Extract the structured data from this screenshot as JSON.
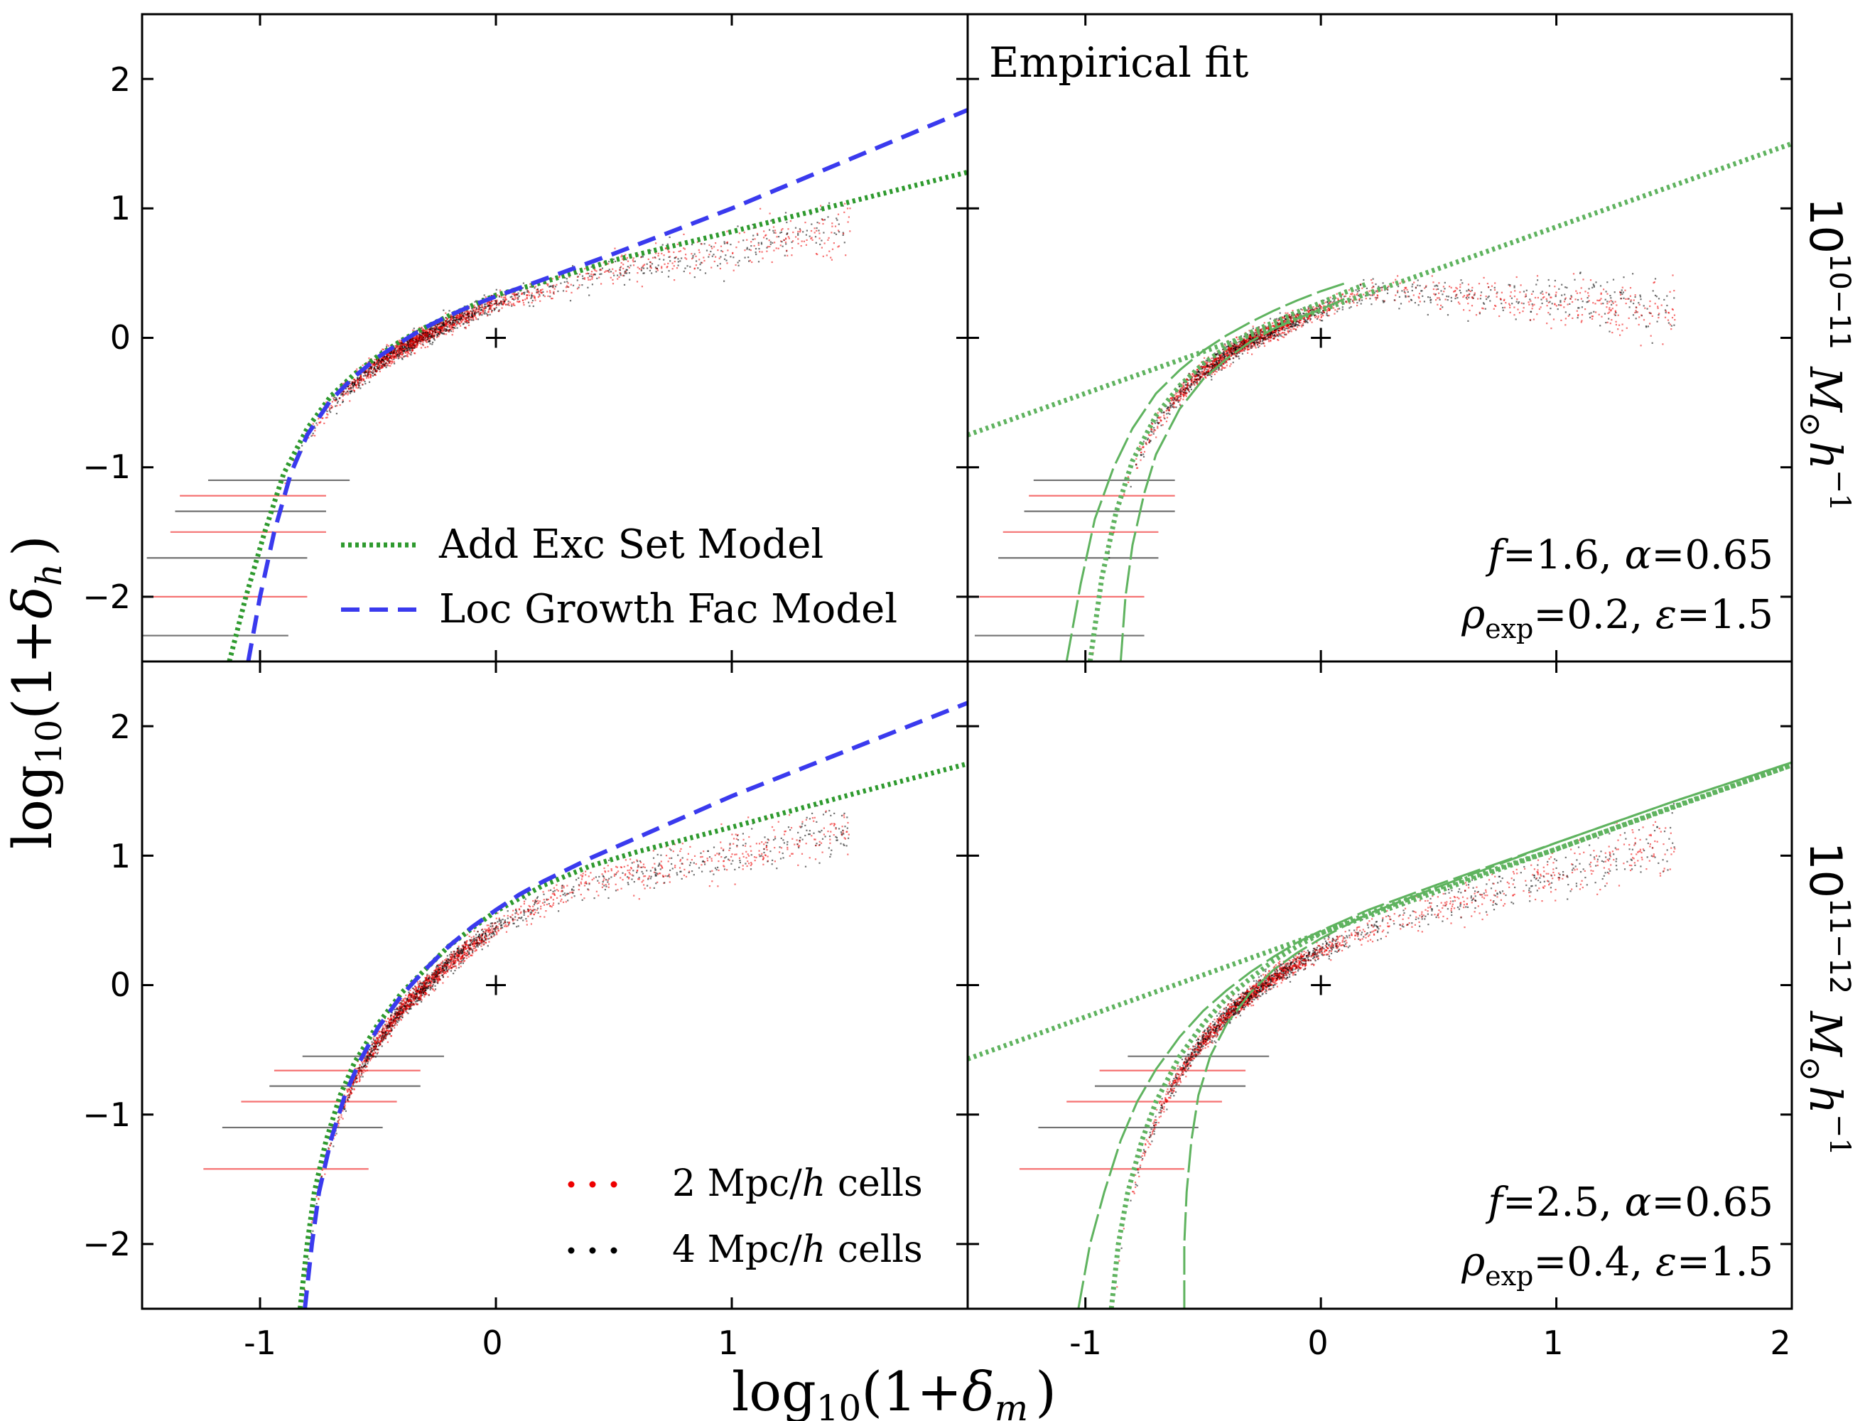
{
  "figure": {
    "xlabel": "log10(1+δm )",
    "ylabel": "log10(1+δh )",
    "xlabel_parts": {
      "base": "log",
      "sub": "10",
      "open": "(1+",
      "delta": "δ",
      "delta_sub": "m",
      "close": ")"
    },
    "ylabel_parts": {
      "base": "log",
      "sub": "10",
      "open": "(1+",
      "delta": "δ",
      "delta_sub": "h",
      "close": ")"
    },
    "row_labels": [
      {
        "base": "10",
        "sup": "10−11",
        "mass": "M",
        "sun": "⊙",
        "h": "h",
        "hsup": "−1"
      },
      {
        "base": "10",
        "sup": "11−12",
        "mass": "M",
        "sun": "⊙",
        "h": "h",
        "hsup": "−1"
      }
    ],
    "x_ticks_left": [
      "-1",
      "0",
      "1"
    ],
    "x_ticks_right": [
      "-1",
      "0",
      "1",
      "2"
    ],
    "y_ticks": [
      "2",
      "1",
      "0",
      "−1",
      "−2"
    ]
  },
  "legend_models": {
    "entries": [
      {
        "label": "Add Exc Set Model",
        "color": "#2e9a2e",
        "style": "dotted"
      },
      {
        "label": "Loc Growth Fac Model",
        "color": "#3a3aee",
        "style": "dashed"
      }
    ]
  },
  "legend_cells": {
    "entries": [
      {
        "label_pre": "2 Mpc/",
        "label_h": "h",
        "label_post": " cells",
        "color": "#ee0000"
      },
      {
        "label_pre": "4 Mpc/",
        "label_h": "h",
        "label_post": " cells",
        "color": "#000000"
      }
    ]
  },
  "panel_text": {
    "empirical_title": "Empirical fit",
    "top_right": {
      "line1": {
        "f": "f",
        "f_val": "=1.6, ",
        "alpha": "α",
        "alpha_val": "=0.65"
      },
      "line2": {
        "rho": "ρ",
        "rho_sub": "exp",
        "rho_val": "=0.2, ",
        "eps": "ε",
        "eps_val": "=1.5"
      }
    },
    "bottom_right": {
      "line1": {
        "f": "f",
        "f_val": "=2.5, ",
        "alpha": "α",
        "alpha_val": "=0.65"
      },
      "line2": {
        "rho": "ρ",
        "rho_sub": "exp",
        "rho_val": "=0.4, ",
        "eps": "ε",
        "eps_val": "=1.5"
      }
    }
  },
  "colors": {
    "green": "#2e9a2e",
    "green_light": "#5fb35f",
    "blue": "#3a3aee",
    "red_points": "#ee0000",
    "black_points": "#000000"
  },
  "chart_data": [
    {
      "panel": "top-left",
      "type": "scatter",
      "xlim": [
        -1.5,
        2.0
      ],
      "ylim": [
        -2.5,
        2.5
      ],
      "series": [
        {
          "name": "Add Exc Set Model",
          "style": "dotted",
          "color": "#2e9a2e",
          "x": [
            -1.13,
            -1.06,
            -0.98,
            -0.9,
            -0.8,
            -0.7,
            -0.6,
            -0.5,
            -0.4,
            -0.3,
            -0.2,
            -0.1,
            0.0,
            0.2,
            0.5,
            1.0,
            1.5,
            2.0
          ],
          "y": [
            -2.5,
            -2.0,
            -1.5,
            -1.05,
            -0.7,
            -0.45,
            -0.28,
            -0.14,
            -0.02,
            0.08,
            0.17,
            0.25,
            0.33,
            0.43,
            0.6,
            0.82,
            1.05,
            1.28
          ]
        },
        {
          "name": "Loc Growth Fac Model",
          "style": "dashed",
          "color": "#3a3aee",
          "x": [
            -1.05,
            -1.0,
            -0.94,
            -0.87,
            -0.8,
            -0.7,
            -0.6,
            -0.5,
            -0.4,
            -0.3,
            -0.2,
            -0.1,
            0.0,
            0.2,
            0.5,
            1.0,
            1.5,
            2.0
          ],
          "y": [
            -2.5,
            -2.0,
            -1.5,
            -1.05,
            -0.75,
            -0.48,
            -0.3,
            -0.15,
            -0.03,
            0.08,
            0.17,
            0.25,
            0.32,
            0.45,
            0.65,
            1.0,
            1.38,
            1.76
          ]
        },
        {
          "name": "",
          "style": "marker",
          "color": "#000000",
          "x": [
            0
          ],
          "y": [
            0
          ]
        }
      ]
    },
    {
      "panel": "top-right",
      "type": "scatter",
      "xlim": [
        -1.5,
        2.0
      ],
      "ylim": [
        -2.5,
        2.5
      ],
      "series": [
        {
          "name": "",
          "style": "dotted-straight",
          "color": "#5fb35f",
          "x": [
            -1.5,
            2.0
          ],
          "y": [
            -0.75,
            1.5
          ]
        },
        {
          "name": "",
          "style": "dotted",
          "color": "#5fb35f",
          "x": [
            -0.98,
            -0.93,
            -0.87,
            -0.8,
            -0.7,
            -0.6,
            -0.5,
            -0.4,
            -0.3,
            -0.2,
            -0.1,
            0.0,
            0.1,
            0.2
          ],
          "y": [
            -2.5,
            -1.85,
            -1.35,
            -0.95,
            -0.6,
            -0.37,
            -0.2,
            -0.07,
            0.04,
            0.12,
            0.2,
            0.27,
            0.35,
            0.42
          ]
        },
        {
          "name": "",
          "style": "long-dash",
          "color": "#5fb35f",
          "x": [
            -1.08,
            -1.02,
            -0.96,
            -0.88,
            -0.8,
            -0.7,
            -0.6,
            -0.5,
            -0.4,
            -0.3,
            -0.2,
            -0.1,
            0.0,
            0.1
          ],
          "y": [
            -2.5,
            -1.9,
            -1.4,
            -1.0,
            -0.7,
            -0.43,
            -0.25,
            -0.1,
            0.02,
            0.12,
            0.21,
            0.29,
            0.36,
            0.42
          ]
        },
        {
          "name": "",
          "style": "long-dash",
          "color": "#5fb35f",
          "x": [
            -0.85,
            -0.83,
            -0.8,
            -0.75,
            -0.7,
            -0.6,
            -0.5,
            -0.4,
            -0.3,
            -0.2,
            -0.1,
            0.0,
            0.1
          ],
          "y": [
            -2.5,
            -2.0,
            -1.6,
            -1.2,
            -0.9,
            -0.55,
            -0.32,
            -0.16,
            -0.03,
            0.07,
            0.15,
            0.22,
            0.3
          ]
        },
        {
          "name": "",
          "style": "marker",
          "color": "#000000",
          "x": [
            0
          ],
          "y": [
            0
          ]
        }
      ]
    },
    {
      "panel": "bottom-left",
      "type": "scatter",
      "xlim": [
        -1.5,
        2.0
      ],
      "ylim": [
        -2.5,
        2.5
      ],
      "series": [
        {
          "name": "Add Exc Set Model",
          "style": "dotted",
          "color": "#2e9a2e",
          "x": [
            -0.83,
            -0.8,
            -0.77,
            -0.72,
            -0.66,
            -0.6,
            -0.5,
            -0.4,
            -0.3,
            -0.2,
            -0.1,
            0.0,
            0.1,
            0.2,
            0.4,
            0.6,
            1.0,
            1.5,
            2.0
          ],
          "y": [
            -2.5,
            -2.0,
            -1.6,
            -1.2,
            -0.85,
            -0.6,
            -0.3,
            -0.06,
            0.12,
            0.3,
            0.44,
            0.57,
            0.67,
            0.77,
            0.92,
            1.03,
            1.22,
            1.47,
            1.71
          ]
        },
        {
          "name": "Loc Growth Fac Model",
          "style": "dashed",
          "color": "#3a3aee",
          "x": [
            -0.81,
            -0.78,
            -0.75,
            -0.7,
            -0.64,
            -0.58,
            -0.5,
            -0.4,
            -0.3,
            -0.2,
            -0.1,
            0.0,
            0.1,
            0.2,
            0.4,
            0.6,
            1.0,
            1.5,
            2.0
          ],
          "y": [
            -2.5,
            -2.0,
            -1.6,
            -1.2,
            -0.85,
            -0.6,
            -0.33,
            -0.08,
            0.12,
            0.3,
            0.45,
            0.58,
            0.7,
            0.8,
            0.98,
            1.14,
            1.46,
            1.82,
            2.18
          ]
        },
        {
          "name": "",
          "style": "marker",
          "color": "#000000",
          "x": [
            0
          ],
          "y": [
            0
          ]
        }
      ]
    },
    {
      "panel": "bottom-right",
      "type": "scatter",
      "xlim": [
        -1.5,
        2.0
      ],
      "ylim": [
        -2.5,
        2.5
      ],
      "series": [
        {
          "name": "",
          "style": "dotted-straight",
          "color": "#5fb35f",
          "x": [
            -1.5,
            2.0
          ],
          "y": [
            -0.57,
            1.7
          ]
        },
        {
          "name": "",
          "style": "dotted",
          "color": "#5fb35f",
          "x": [
            -0.89,
            -0.86,
            -0.82,
            -0.76,
            -0.7,
            -0.6,
            -0.5,
            -0.4,
            -0.3,
            -0.2,
            -0.1,
            0.0,
            0.2,
            0.5,
            1.0,
            1.5,
            2.0
          ],
          "y": [
            -2.5,
            -2.0,
            -1.6,
            -1.2,
            -0.9,
            -0.55,
            -0.3,
            -0.1,
            0.05,
            0.19,
            0.3,
            0.4,
            0.55,
            0.75,
            1.05,
            1.38,
            1.7
          ]
        },
        {
          "name": "",
          "style": "long-dash",
          "color": "#5fb35f",
          "x": [
            -1.03,
            -0.98,
            -0.92,
            -0.85,
            -0.78,
            -0.7,
            -0.6,
            -0.5,
            -0.4,
            -0.3,
            -0.2,
            -0.1,
            0.0,
            0.2,
            0.5,
            1.0,
            1.5,
            2.0
          ],
          "y": [
            -2.5,
            -2.0,
            -1.6,
            -1.2,
            -0.9,
            -0.65,
            -0.4,
            -0.2,
            -0.04,
            0.1,
            0.22,
            0.33,
            0.42,
            0.58,
            0.78,
            1.1,
            1.42,
            1.72
          ]
        },
        {
          "name": "",
          "style": "long-dash",
          "color": "#5fb35f",
          "x": [
            -0.58,
            -0.58,
            -0.57,
            -0.55,
            -0.52,
            -0.47,
            -0.4,
            -0.3,
            -0.2,
            -0.1,
            0.0,
            0.2,
            0.5,
            1.0,
            1.5,
            2.0
          ],
          "y": [
            -2.5,
            -2.0,
            -1.6,
            -1.2,
            -0.85,
            -0.55,
            -0.3,
            -0.06,
            0.12,
            0.25,
            0.36,
            0.55,
            0.76,
            1.1,
            1.42,
            1.72
          ]
        },
        {
          "name": "",
          "style": "marker",
          "color": "#000000",
          "x": [
            0
          ],
          "y": [
            0
          ]
        }
      ]
    }
  ]
}
